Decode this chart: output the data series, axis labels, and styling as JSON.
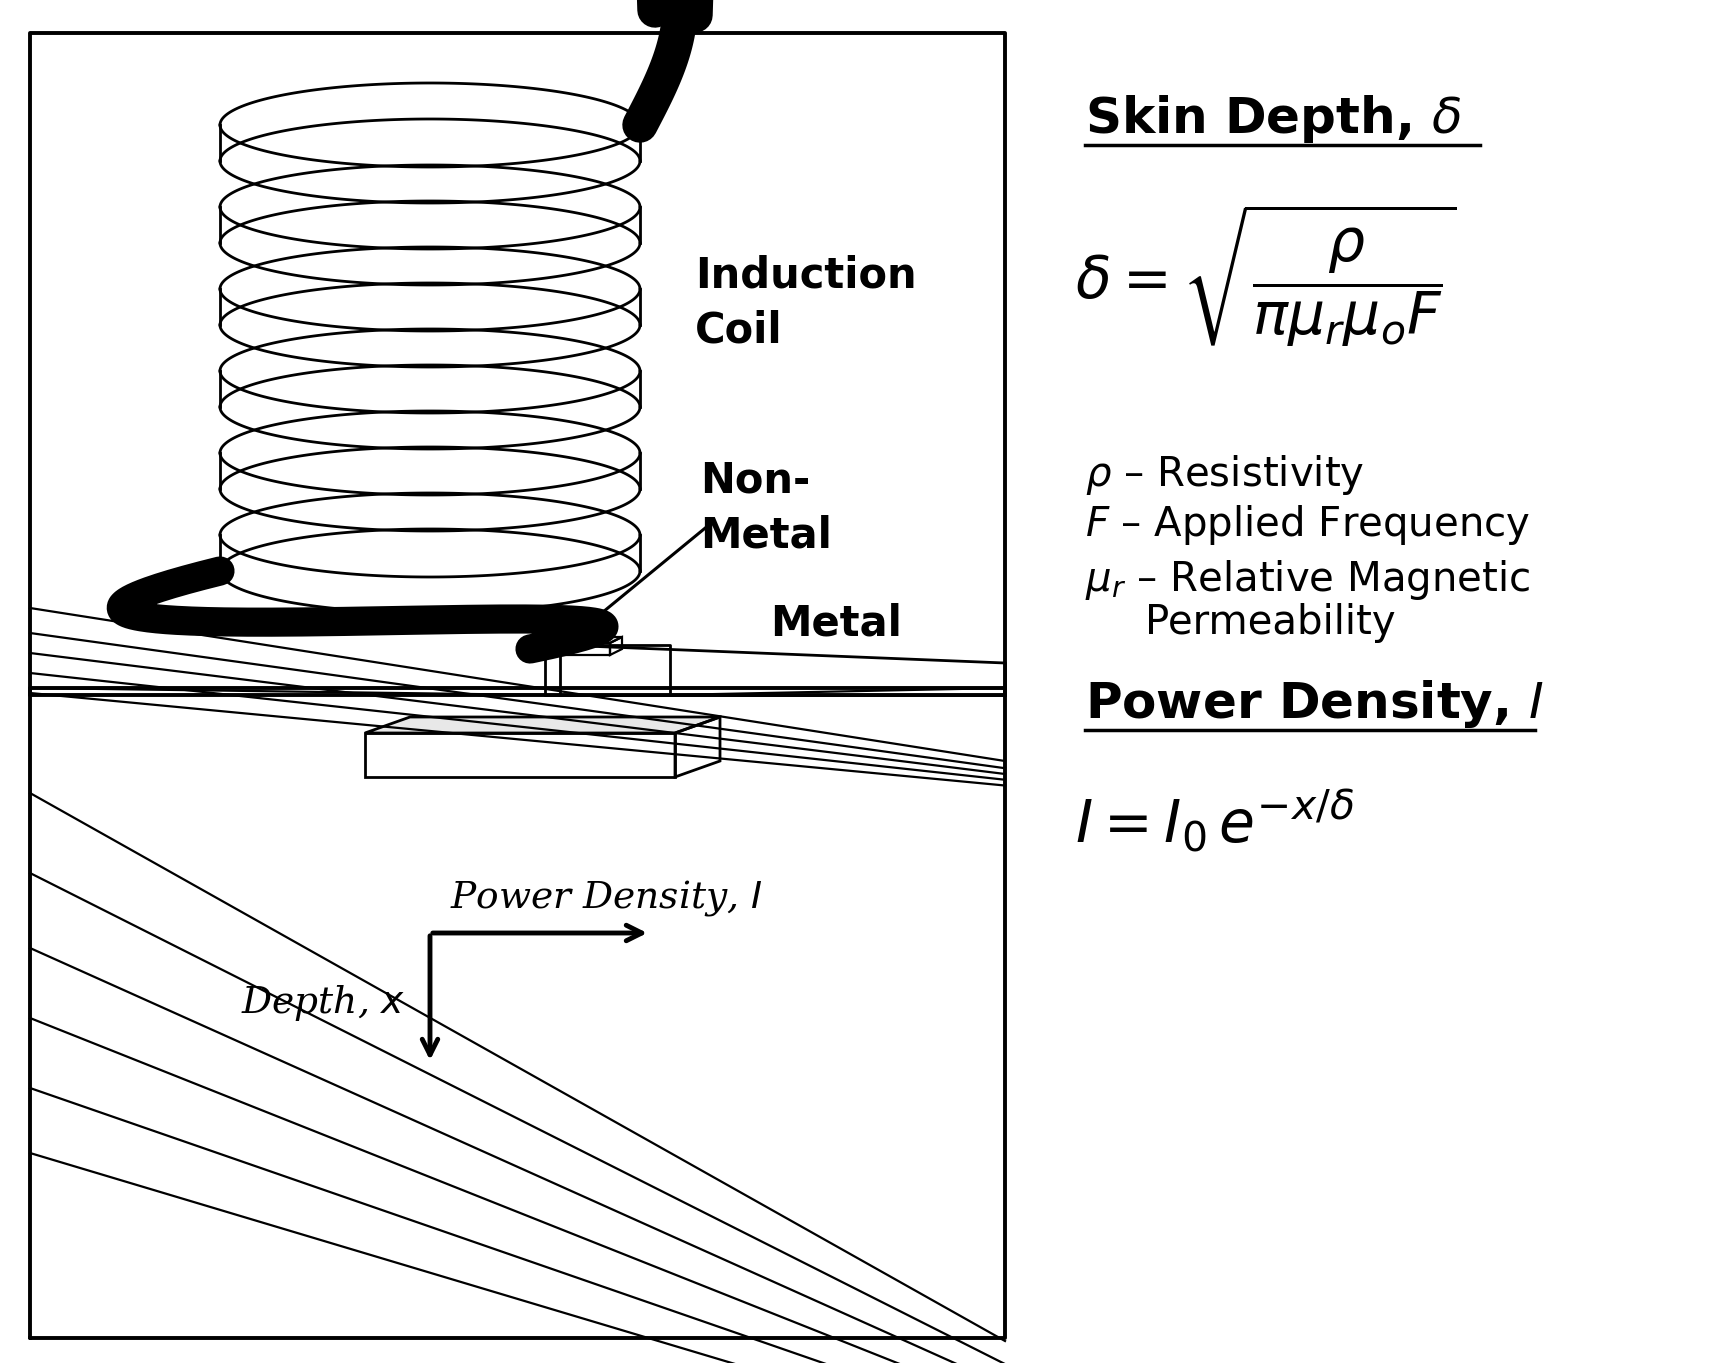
{
  "bg_color": "#ffffff",
  "line_color": "#000000",
  "title_skin_depth": "Skin Depth, $\\delta$",
  "formula_skin_depth": "$\\delta = \\sqrt{\\dfrac{\\rho}{\\pi\\mu_r\\mu_o F}}$",
  "rho_label": "$\\rho$ – Resistivity",
  "F_label": "$F$ – Applied Frequency",
  "mu_label1": "$\\mu_r$ – Relative Magnetic",
  "mu_label2": "      Permeability",
  "title_power_density": "Power Density, $I$",
  "formula_power_density": "$I = I_0\\, e^{-x/\\delta}$",
  "label_induction_coil": "Induction\nCoil",
  "label_non_metal": "Non-\nMetal",
  "label_metal": "Metal",
  "label_power_density_diagram": "Power Density, $I$",
  "label_depth": "Depth, $x$"
}
